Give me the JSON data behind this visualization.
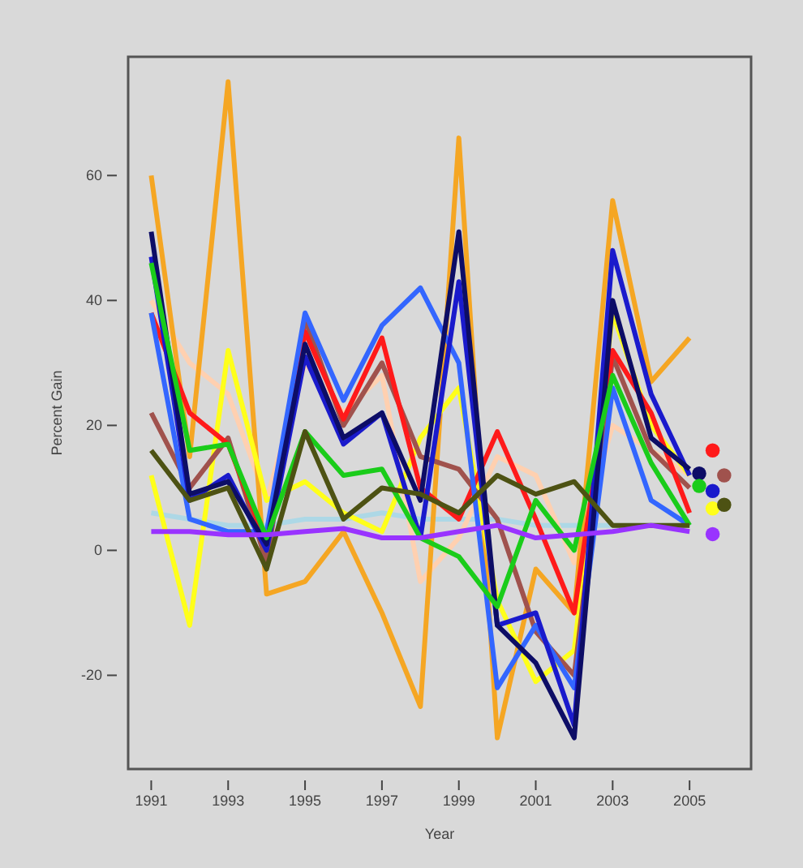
{
  "chart_data": {
    "type": "line",
    "xlabel": "Year",
    "ylabel": "Percent Gain",
    "x": [
      1991,
      1992,
      1993,
      1994,
      1995,
      1996,
      1997,
      1998,
      1999,
      2000,
      2001,
      2002,
      2003,
      2004,
      2005
    ],
    "xlim": [
      1990.4,
      2006.6
    ],
    "ylim": [
      -35,
      79
    ],
    "xticks": [
      1991,
      1993,
      1995,
      1997,
      1999,
      2001,
      2003,
      2005
    ],
    "yticks": [
      -20,
      0,
      20,
      40,
      60
    ],
    "grid": false,
    "line_style": "solid",
    "marker": "none",
    "series": [
      {
        "color": "#add8e6",
        "values": [
          6,
          5,
          4,
          4,
          5,
          5,
          6,
          5,
          5,
          5,
          4,
          4,
          4,
          4,
          4
        ]
      },
      {
        "color": "#ffd0b0",
        "values": [
          40,
          30,
          25,
          8,
          30,
          22,
          28,
          -5,
          2,
          15,
          12,
          -2,
          20,
          16,
          12
        ]
      },
      {
        "color": "#f5a623",
        "values": [
          60,
          15,
          75,
          -7,
          -5,
          3,
          -10,
          -25,
          66,
          -30,
          -3,
          -10,
          56,
          27,
          34
        ]
      },
      {
        "color": "#ffff1a",
        "values": [
          12,
          -12,
          32,
          8,
          11,
          6,
          3,
          18,
          26,
          -8,
          -21,
          -16,
          38,
          20,
          12
        ]
      },
      {
        "color": "#a0524d",
        "values": [
          22,
          10,
          18,
          -2,
          37,
          20,
          30,
          15,
          13,
          5,
          -13,
          -20,
          31,
          16,
          10
        ]
      },
      {
        "color": "#ff1a1a",
        "values": [
          38,
          22,
          17,
          1,
          35,
          21,
          34,
          10,
          5,
          19,
          5,
          -10,
          32,
          22,
          6
        ]
      },
      {
        "color": "#3366ff",
        "values": [
          38,
          5,
          3,
          3,
          38,
          24,
          36,
          42,
          30,
          -22,
          -12,
          -22,
          26,
          8,
          4
        ]
      },
      {
        "color": "#1a1acc",
        "values": [
          47,
          8,
          12,
          0,
          31,
          17,
          22,
          2,
          43,
          -12,
          -10,
          -28,
          48,
          25,
          12
        ]
      },
      {
        "color": "#0d0d66",
        "values": [
          51,
          9,
          11,
          1,
          33,
          18,
          22,
          8,
          51,
          -12,
          -18,
          -30,
          40,
          18,
          13
        ]
      },
      {
        "color": "#1acc1a",
        "values": [
          46,
          16,
          17,
          2,
          19,
          12,
          13,
          2,
          -1,
          -9,
          8,
          0,
          28,
          14,
          4
        ]
      },
      {
        "color": "#4d5213",
        "values": [
          16,
          8,
          10,
          -3,
          19,
          5,
          10,
          9,
          6,
          12,
          9,
          11,
          4,
          4,
          4
        ]
      },
      {
        "color": "#9933ff",
        "values": [
          3,
          3,
          2.5,
          2.5,
          3,
          3.5,
          2,
          2,
          3,
          4,
          2,
          2.5,
          3,
          4,
          3
        ]
      },
      {
        "type": "scatter",
        "marker": "circle",
        "x": [
          2005.6,
          2005.9,
          2005.25,
          2005.25,
          2005.6,
          2005.6,
          2005.9,
          2005.6
        ],
        "colors": [
          "#ff1a1a",
          "#a0524d",
          "#0d0d66",
          "#1acc1a",
          "#1a1acc",
          "#ffff1a",
          "#4d5213",
          "#9933ff"
        ],
        "values": [
          16,
          12,
          12.3,
          10.3,
          9.5,
          6.7,
          7.3,
          2.6
        ]
      }
    ]
  }
}
